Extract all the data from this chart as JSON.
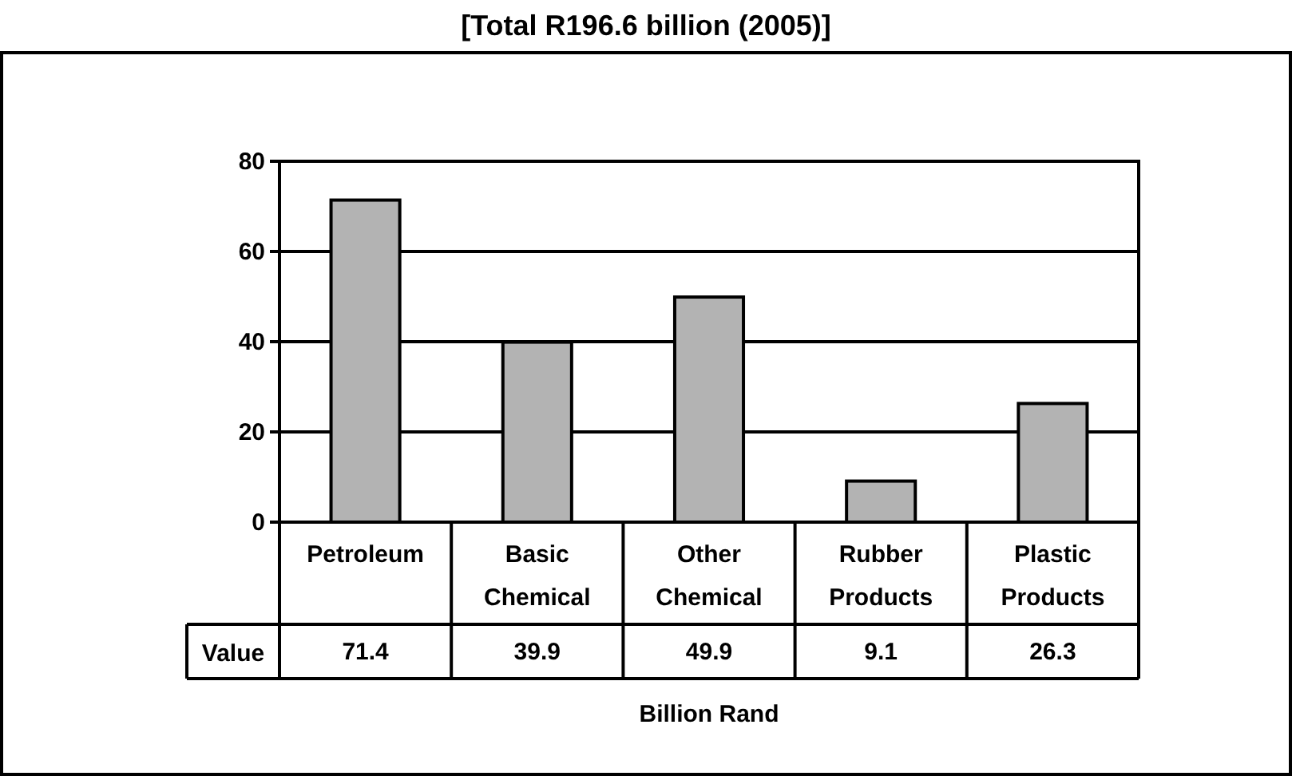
{
  "chart_data": {
    "type": "bar",
    "title": "[Total R196.6 billion (2005)]",
    "categories": [
      "Petroleum",
      "Basic Chemical",
      "Other Chemical",
      "Rubber Products",
      "Plastic Products"
    ],
    "series": [
      {
        "name": "Value",
        "color": "#b3b3b3",
        "values": [
          71.4,
          39.9,
          49.9,
          9.1,
          26.3
        ]
      }
    ],
    "xlabel": "Billion Rand",
    "ylim": [
      0,
      80
    ],
    "yticks": [
      0,
      20,
      40,
      60,
      80
    ],
    "grid": "y",
    "data_labels": true
  }
}
